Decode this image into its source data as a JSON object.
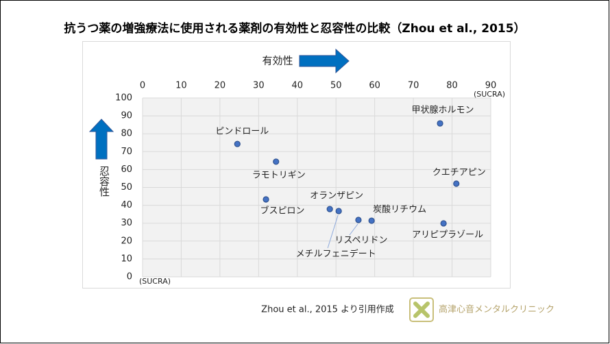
{
  "chart_data": {
    "type": "scatter",
    "title": "抗うつ薬の増強療法に使用される薬剤の有効性と忍容性の比較（Zhou et al., 2015）",
    "x_label": "有効性",
    "y_label": "忍容性",
    "x_unit_label": "(SUCRA)",
    "y_unit_label": "(SUCRA)",
    "point_labels": [
      "ピンドロール",
      "ラモトリギン",
      "ブスピロン",
      "オランザピン",
      "メチルフェニデート",
      "リスペリドン",
      "炭酸リチウム",
      "甲状腺ホルモン",
      "クエチアピン",
      "アリピプラゾール"
    ],
    "x": [
      24.5,
      34.5,
      31.9,
      48.4,
      50.7,
      55.8,
      59.2,
      76.9,
      81.1,
      77.8
    ],
    "values": [
      74.3,
      64.4,
      43.3,
      37.9,
      36.8,
      31.8,
      31.4,
      85.8,
      52.1,
      29.9
    ],
    "color": "#4472c4",
    "xlim": [
      0,
      90
    ],
    "xticks": [
      0,
      10,
      20,
      30,
      40,
      50,
      60,
      70,
      80,
      90
    ],
    "ylim": [
      0,
      100
    ],
    "yticks": [
      0,
      10,
      20,
      30,
      40,
      50,
      60,
      70,
      80,
      90,
      100
    ],
    "grid": true
  },
  "footer": {
    "source": "Zhou et al., 2015 より引用作成",
    "logo_text": "高津心音メンタルクリニック"
  }
}
